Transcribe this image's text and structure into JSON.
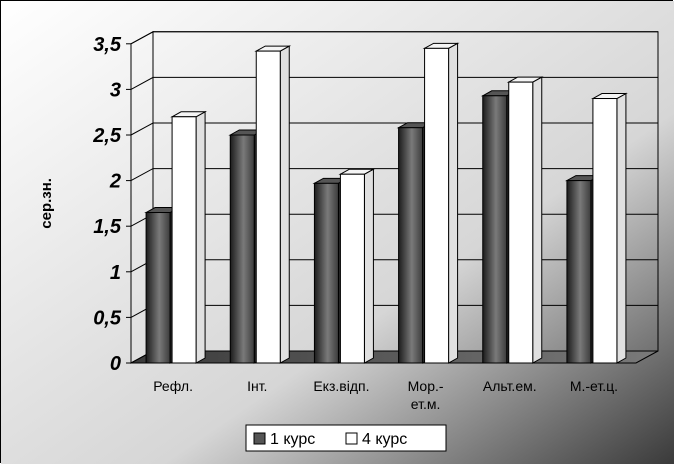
{
  "chart_data": {
    "type": "bar",
    "title": "",
    "xlabel": "",
    "ylabel": "сер.зн.",
    "ylim": [
      0,
      3.5
    ],
    "yticks": [
      "0",
      "0,5",
      "1",
      "1,5",
      "2",
      "2,5",
      "3",
      "3,5"
    ],
    "categories": [
      [
        "Рефл."
      ],
      [
        "Інт."
      ],
      [
        "Екз.відп."
      ],
      [
        "Мор.-",
        "ет.м."
      ],
      [
        "Альт.ем."
      ],
      [
        "М.-ет.ц."
      ]
    ],
    "series": [
      {
        "name": "1 курс",
        "values": [
          1.65,
          2.5,
          1.97,
          2.58,
          2.93,
          2.0
        ],
        "color": "#6e6e6e"
      },
      {
        "name": "4 курс",
        "values": [
          2.7,
          3.42,
          2.07,
          3.45,
          3.08,
          2.9
        ],
        "color": "#ffffff"
      }
    ],
    "grid": true,
    "legend_position": "bottom",
    "style": "3d"
  }
}
